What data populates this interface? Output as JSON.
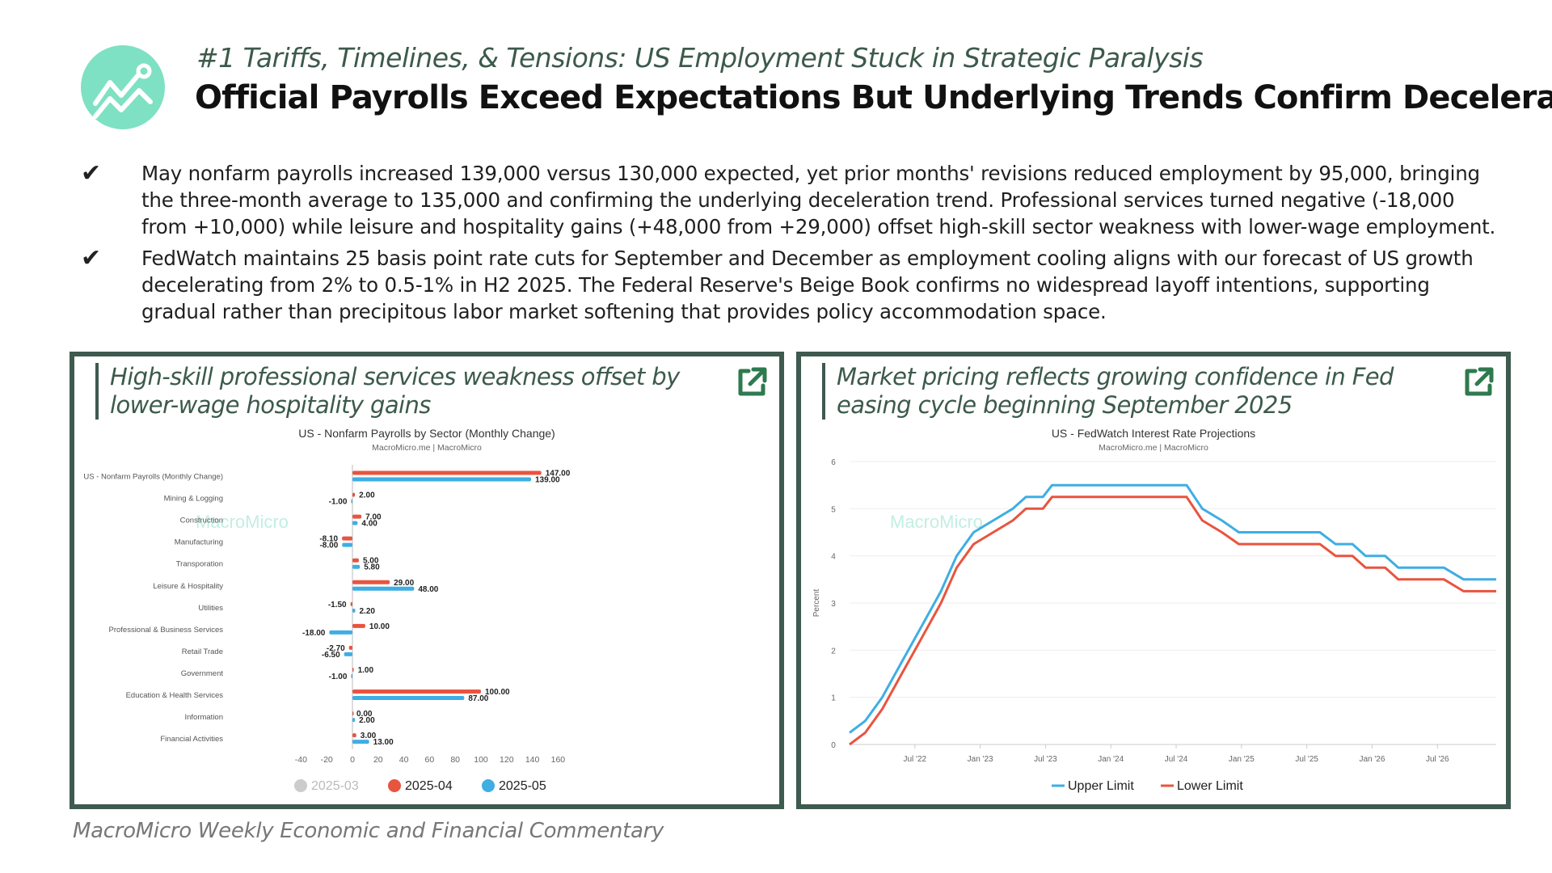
{
  "header": {
    "kicker": "#1 Tariffs, Timelines, & Tensions: US Employment Stuck in Strategic Paralysis",
    "headline": "Official Payrolls Exceed Expectations But Underlying Trends Confirm Deceleration",
    "logo_icon": "trend-chart-icon",
    "accent": "#7ee1c3"
  },
  "bullets": [
    {
      "check": "✔",
      "text": "May nonfarm payrolls increased 139,000 versus 130,000 expected, yet prior months' revisions reduced employment by 95,000, bringing the three-month average to 135,000 and confirming the underlying deceleration trend. Professional services turned negative (-18,000 from +10,000) while leisure and hospitality gains (+48,000 from +29,000) offset high-skill sector weakness with lower-wage employment."
    },
    {
      "check": "✔",
      "text": "FedWatch maintains 25 basis point rate cuts for September and December as employment cooling aligns with our forecast of US growth decelerating from 2% to 0.5-1% in H2 2025. The Federal Reserve's Beige Book confirms no widespread layoff intentions, supporting gradual rather than precipitous labor market softening that provides policy accommodation space."
    }
  ],
  "panels": {
    "left_title": "High-skill professional services weakness offset by lower-wage hospitality gains",
    "right_title": "Market pricing reflects growing confidence in Fed easing cycle beginning September 2025"
  },
  "chart_data": [
    {
      "type": "bar",
      "orientation": "horizontal",
      "title": "US - Nonfarm Payrolls by Sector (Monthly Change)",
      "subtitle": "MacroMicro.me | MacroMicro",
      "watermark": "MacroMicro",
      "categories": [
        "US - Nonfarm Payrolls (Monthly Change)",
        "Mining & Logging",
        "Construction",
        "Manufacturing",
        "Transporation",
        "Leisure & Hospitality",
        "Utilities",
        "Professional & Business Services",
        "Retail Trade",
        "Government",
        "Education & Health Services",
        "Information",
        "Financial Activities"
      ],
      "series": [
        {
          "name": "2025-03",
          "color": "#cccccc",
          "hidden": true
        },
        {
          "name": "2025-04",
          "color": "#e9543f",
          "values": [
            147,
            2,
            7,
            -8.1,
            5,
            29,
            -1.5,
            10,
            -2.7,
            1,
            100,
            0,
            3
          ],
          "labels": [
            "147.00",
            "2.00",
            "7.00",
            "-8.10",
            "5.00",
            "29.00",
            "-1.50",
            "10.00",
            "-2.70",
            "1.00",
            "100.00",
            "0.00",
            "3.00"
          ]
        },
        {
          "name": "2025-05",
          "color": "#3eaee3",
          "values": [
            139,
            -1,
            4,
            -8,
            5.8,
            48,
            2.2,
            -18,
            -6.5,
            -1,
            87,
            2,
            13
          ],
          "labels": [
            "139.00",
            "-1.00",
            "4.00",
            "-8.00",
            "5.80",
            "48.00",
            "2.20",
            "-18.00",
            "-6.50",
            "-1.00",
            "87.00",
            "2.00",
            "13.00"
          ]
        }
      ],
      "xlim": [
        -40,
        160
      ],
      "xticks": [
        "-40",
        "-20",
        "0",
        "20",
        "40",
        "60",
        "80",
        "100",
        "120",
        "140",
        "160"
      ]
    },
    {
      "type": "line",
      "title": "US - FedWatch Interest Rate Projections",
      "subtitle": "MacroMicro.me | MacroMicro",
      "watermark": "MacroMicro",
      "ylabel": "Percent",
      "ylim": [
        0,
        6
      ],
      "yticks": [
        "0",
        "1",
        "2",
        "3",
        "4",
        "5",
        "6"
      ],
      "xlim": [
        2022.0,
        2026.95
      ],
      "xticks": [
        {
          "label": "Jul '22",
          "t": 2022.5
        },
        {
          "label": "Jan '23",
          "t": 2023.0
        },
        {
          "label": "Jul '23",
          "t": 2023.5
        },
        {
          "label": "Jan '24",
          "t": 2024.0
        },
        {
          "label": "Jul '24",
          "t": 2024.5
        },
        {
          "label": "Jan '25",
          "t": 2025.0
        },
        {
          "label": "Jul '25",
          "t": 2025.5
        },
        {
          "label": "Jan '26",
          "t": 2026.0
        },
        {
          "label": "Jul '26",
          "t": 2026.5
        }
      ],
      "series": [
        {
          "name": "Upper Limit",
          "color": "#3eaee3",
          "points": [
            [
              2022.0,
              0.25
            ],
            [
              2022.12,
              0.5
            ],
            [
              2022.25,
              1.0
            ],
            [
              2022.4,
              1.75
            ],
            [
              2022.55,
              2.5
            ],
            [
              2022.7,
              3.25
            ],
            [
              2022.82,
              4.0
            ],
            [
              2022.95,
              4.5
            ],
            [
              2023.1,
              4.75
            ],
            [
              2023.25,
              5.0
            ],
            [
              2023.35,
              5.25
            ],
            [
              2023.48,
              5.25
            ],
            [
              2023.55,
              5.5
            ],
            [
              2024.58,
              5.5
            ],
            [
              2024.7,
              5.0
            ],
            [
              2024.85,
              4.75
            ],
            [
              2024.98,
              4.5
            ],
            [
              2025.2,
              4.5
            ],
            [
              2025.6,
              4.5
            ],
            [
              2025.72,
              4.25
            ],
            [
              2025.85,
              4.25
            ],
            [
              2025.95,
              4.0
            ],
            [
              2026.1,
              4.0
            ],
            [
              2026.2,
              3.75
            ],
            [
              2026.55,
              3.75
            ],
            [
              2026.7,
              3.5
            ],
            [
              2026.95,
              3.5
            ]
          ]
        },
        {
          "name": "Lower Limit",
          "color": "#e9543f",
          "points": [
            [
              2022.0,
              0.0
            ],
            [
              2022.12,
              0.25
            ],
            [
              2022.25,
              0.75
            ],
            [
              2022.4,
              1.5
            ],
            [
              2022.55,
              2.25
            ],
            [
              2022.7,
              3.0
            ],
            [
              2022.82,
              3.75
            ],
            [
              2022.95,
              4.25
            ],
            [
              2023.1,
              4.5
            ],
            [
              2023.25,
              4.75
            ],
            [
              2023.35,
              5.0
            ],
            [
              2023.48,
              5.0
            ],
            [
              2023.55,
              5.25
            ],
            [
              2024.58,
              5.25
            ],
            [
              2024.7,
              4.75
            ],
            [
              2024.85,
              4.5
            ],
            [
              2024.98,
              4.25
            ],
            [
              2025.2,
              4.25
            ],
            [
              2025.6,
              4.25
            ],
            [
              2025.72,
              4.0
            ],
            [
              2025.85,
              4.0
            ],
            [
              2025.95,
              3.75
            ],
            [
              2026.1,
              3.75
            ],
            [
              2026.2,
              3.5
            ],
            [
              2026.55,
              3.5
            ],
            [
              2026.7,
              3.25
            ],
            [
              2026.95,
              3.25
            ]
          ]
        }
      ]
    }
  ],
  "footer": "MacroMicro Weekly Economic and Financial Commentary"
}
